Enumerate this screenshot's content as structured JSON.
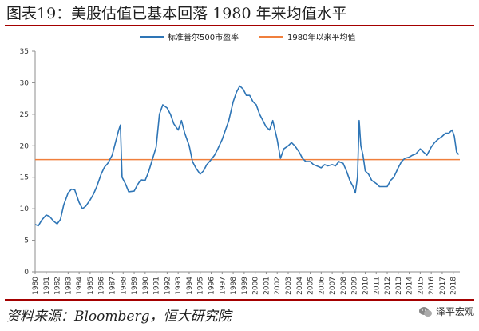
{
  "header": {
    "title": "图表19：美股估值已基本回落 1980 年来均值水平"
  },
  "footer": {
    "source": "资料来源：Bloomberg，恒大研究院",
    "brand": "泽平宏观"
  },
  "colors": {
    "series": "#2e75b6",
    "mean": "#f07f3c",
    "accent": "#a40000",
    "axis": "#8c8c8c"
  },
  "chart_data": {
    "type": "line",
    "ylim": [
      0,
      35
    ],
    "yticks": [
      0,
      5,
      10,
      15,
      20,
      25,
      30,
      35
    ],
    "xlim": [
      1980,
      2018.6
    ],
    "xticks": [
      "1980",
      "1981",
      "1982",
      "1983",
      "1984",
      "1985",
      "1986",
      "1987",
      "1988",
      "1989",
      "1990",
      "1991",
      "1992",
      "1993",
      "1994",
      "1995",
      "1996",
      "1997",
      "1998",
      "1999",
      "2000",
      "2001",
      "2002",
      "2003",
      "2004",
      "2005",
      "2006",
      "2007",
      "2008",
      "2009",
      "2010",
      "2011",
      "2012",
      "2013",
      "2014",
      "2015",
      "2016",
      "2017",
      "2018"
    ],
    "legend": [
      "标准普尔500市盈率",
      "1980年以来平均值"
    ],
    "mean_value": 17.8,
    "series": [
      {
        "name": "标准普尔500市盈率",
        "x": [
          1980.0,
          1980.3,
          1980.6,
          1981.0,
          1981.3,
          1981.7,
          1982.0,
          1982.3,
          1982.6,
          1983.0,
          1983.3,
          1983.6,
          1984.0,
          1984.3,
          1984.6,
          1985.0,
          1985.3,
          1985.6,
          1986.0,
          1986.3,
          1986.6,
          1987.0,
          1987.3,
          1987.6,
          1987.75,
          1987.9,
          1988.2,
          1988.5,
          1989.0,
          1989.3,
          1989.6,
          1990.0,
          1990.3,
          1990.6,
          1991.0,
          1991.3,
          1991.6,
          1992.0,
          1992.3,
          1992.6,
          1993.0,
          1993.3,
          1993.6,
          1994.0,
          1994.3,
          1994.6,
          1995.0,
          1995.3,
          1995.6,
          1996.0,
          1996.3,
          1996.6,
          1997.0,
          1997.3,
          1997.6,
          1998.0,
          1998.3,
          1998.6,
          1998.9,
          1999.2,
          1999.5,
          1999.8,
          2000.1,
          2000.4,
          2000.7,
          2001.0,
          2001.3,
          2001.6,
          2002.0,
          2002.3,
          2002.6,
          2003.0,
          2003.3,
          2003.6,
          2004.0,
          2004.3,
          2004.6,
          2005.0,
          2005.3,
          2005.6,
          2006.0,
          2006.3,
          2006.6,
          2007.0,
          2007.3,
          2007.6,
          2008.0,
          2008.3,
          2008.6,
          2008.9,
          2009.1,
          2009.3,
          2009.45,
          2009.6,
          2009.8,
          2010.0,
          2010.3,
          2010.6,
          2011.0,
          2011.3,
          2011.6,
          2012.0,
          2012.3,
          2012.6,
          2013.0,
          2013.3,
          2013.6,
          2014.0,
          2014.3,
          2014.6,
          2015.0,
          2015.3,
          2015.6,
          2016.0,
          2016.3,
          2016.6,
          2017.0,
          2017.3,
          2017.6,
          2017.9,
          2018.1,
          2018.3,
          2018.5
        ],
        "values": [
          7.5,
          7.3,
          8.2,
          9.0,
          8.8,
          8.0,
          7.6,
          8.3,
          10.6,
          12.5,
          13.1,
          13.0,
          11.0,
          10.0,
          10.4,
          11.4,
          12.3,
          13.5,
          15.5,
          16.6,
          17.2,
          18.5,
          20.5,
          22.5,
          23.3,
          15.0,
          14.0,
          12.7,
          12.8,
          13.8,
          14.6,
          14.5,
          15.8,
          17.5,
          19.8,
          25.0,
          26.5,
          26.0,
          25.0,
          23.5,
          22.5,
          24.0,
          22.0,
          20.0,
          17.5,
          16.5,
          15.5,
          16.0,
          17.0,
          17.8,
          18.5,
          19.5,
          21.0,
          22.5,
          24.0,
          27.0,
          28.5,
          29.5,
          29.0,
          28.0,
          28.0,
          27.0,
          26.5,
          25.0,
          24.0,
          23.0,
          22.5,
          24.0,
          21.0,
          18.0,
          19.5,
          20.0,
          20.5,
          20.0,
          19.0,
          18.0,
          17.5,
          17.5,
          17.0,
          16.8,
          16.5,
          17.0,
          16.8,
          17.0,
          16.8,
          17.5,
          17.2,
          16.0,
          14.5,
          13.5,
          12.5,
          15.0,
          24.0,
          20.0,
          18.5,
          16.0,
          15.5,
          14.5,
          14.0,
          13.5,
          13.5,
          13.5,
          14.5,
          15.0,
          16.5,
          17.5,
          18.0,
          18.2,
          18.5,
          18.7,
          19.5,
          19.0,
          18.5,
          19.8,
          20.5,
          21.0,
          21.5,
          22.0,
          22.0,
          22.5,
          21.5,
          19.0,
          18.6
        ]
      },
      {
        "name": "1980年以来平均值",
        "constant": 17.8
      }
    ]
  }
}
